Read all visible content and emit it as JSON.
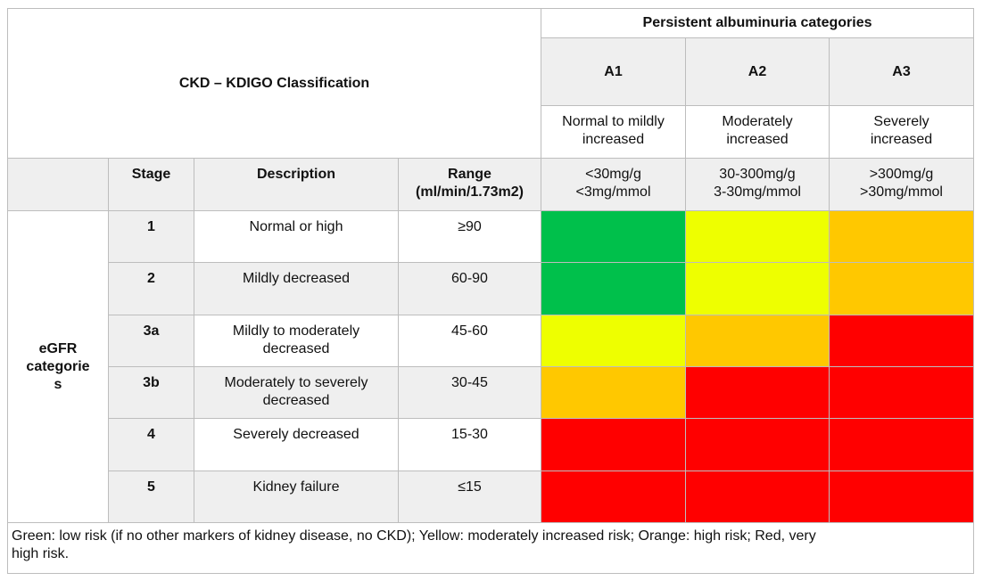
{
  "title": "CKD – KDIGO Classification",
  "albuminuria_header": "Persistent albuminuria categories",
  "albuminuria": [
    {
      "code": "A1",
      "desc1": "Normal to mildly",
      "desc2": "increased",
      "range1": "<30mg/g",
      "range2": "<3mg/mmol"
    },
    {
      "code": "A2",
      "desc1": "Moderately",
      "desc2": "increased",
      "range1": "30-300mg/g",
      "range2": "3-30mg/mmol"
    },
    {
      "code": "A3",
      "desc1": "Severely",
      "desc2": "increased",
      "range1": ">300mg/g",
      "range2": ">30mg/mmol"
    }
  ],
  "columns": {
    "stage": "Stage",
    "description": "Description",
    "range1": "Range",
    "range2": "(ml/min/1.73m2)"
  },
  "egfr_label": {
    "line1": "eGFR",
    "line2": "categorie",
    "line3": "s"
  },
  "stages": [
    {
      "stage": "1",
      "desc1": "Normal or high",
      "desc2": "",
      "range": "≥90",
      "risk": [
        "green",
        "yellow",
        "orange"
      ]
    },
    {
      "stage": "2",
      "desc1": "Mildly decreased",
      "desc2": "",
      "range": "60-90",
      "risk": [
        "green",
        "yellow",
        "orange"
      ]
    },
    {
      "stage": "3a",
      "desc1": "Mildly to moderately",
      "desc2": "decreased",
      "range": "45-60",
      "risk": [
        "yellow",
        "orange",
        "red"
      ]
    },
    {
      "stage": "3b",
      "desc1": "Moderately to severely",
      "desc2": "decreased",
      "range": "30-45",
      "risk": [
        "orange",
        "red",
        "red"
      ]
    },
    {
      "stage": "4",
      "desc1": "Severely decreased",
      "desc2": "",
      "range": "15-30",
      "risk": [
        "red",
        "red",
        "red"
      ]
    },
    {
      "stage": "5",
      "desc1": "Kidney failure",
      "desc2": "",
      "range": "≤15",
      "risk": [
        "red",
        "red",
        "red"
      ]
    }
  ],
  "risk_colors": {
    "green": "#00c04b",
    "yellow": "#eeff00",
    "orange": "#ffc800",
    "red": "#ff0000"
  },
  "footer": {
    "line1": "Green: low risk (if no other markers of kidney disease, no CKD); Yellow: moderately increased risk; Orange: high risk; Red, very",
    "line2": "high risk."
  }
}
